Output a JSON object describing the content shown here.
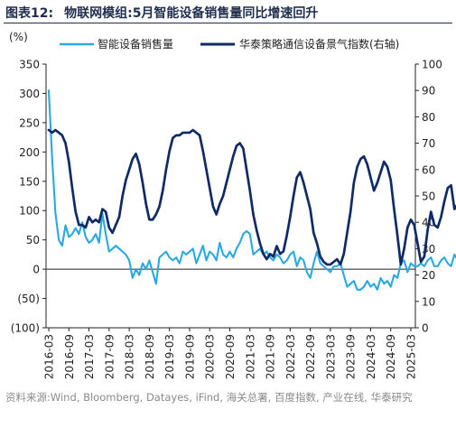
{
  "header": {
    "figure_label": "图表12:",
    "figure_title": "物联网模组:5月智能设备销售量同比增速回升"
  },
  "source_note": "资料来源:Wind, Bloomberg, Datayes, iFind, 海关总署, 百度指数, 产业在线, 华泰研究",
  "colors": {
    "title": "#1f2e4d",
    "series_sales": "#29a9e1",
    "series_index": "#0f2a66",
    "axis": "#222222",
    "source": "#8a8a8a"
  },
  "chart_data": {
    "type": "line",
    "left_axis_unit": "(%)",
    "ylim_left": [
      -100,
      350
    ],
    "ylim_right": [
      0,
      100
    ],
    "y_ticks_left": [
      -100,
      -50,
      0,
      50,
      100,
      150,
      200,
      250,
      300,
      350
    ],
    "y_tick_labels_left": [
      "(100)",
      "(50)",
      "0",
      "50",
      "100",
      "150",
      "200",
      "250",
      "300",
      "350"
    ],
    "y_ticks_right": [
      0,
      10,
      20,
      30,
      40,
      50,
      60,
      70,
      80,
      90,
      100
    ],
    "x_tick_labels": [
      "2016-03",
      "2016-09",
      "2017-03",
      "2017-09",
      "2018-03",
      "2018-09",
      "2019-03",
      "2019-09",
      "2020-03",
      "2020-09",
      "2021-03",
      "2021-09",
      "2022-03",
      "2022-09",
      "2023-03",
      "2023-09",
      "2024-03",
      "2024-09",
      "2025-03"
    ],
    "grid": false,
    "legend_position": "top",
    "series": [
      {
        "name": "智能设备销售量",
        "axis": "left",
        "start": "2016-03",
        "values": [
          305,
          190,
          95,
          50,
          40,
          75,
          55,
          60,
          70,
          60,
          80,
          55,
          45,
          50,
          60,
          45,
          95,
          60,
          30,
          35,
          40,
          35,
          30,
          25,
          15,
          -15,
          0,
          -10,
          10,
          0,
          15,
          -5,
          -25,
          20,
          25,
          30,
          20,
          15,
          20,
          10,
          30,
          25,
          30,
          35,
          10,
          25,
          40,
          15,
          30,
          25,
          15,
          45,
          25,
          20,
          30,
          20,
          35,
          45,
          60,
          65,
          60,
          25,
          30,
          35,
          25,
          30,
          20,
          15,
          25,
          20,
          10,
          15,
          25,
          30,
          5,
          20,
          15,
          -5,
          -15,
          10,
          30,
          10,
          5,
          0,
          -5,
          5,
          5,
          10,
          -10,
          -30,
          -25,
          -20,
          -35,
          -35,
          -30,
          -20,
          -30,
          -25,
          -35,
          -15,
          -25,
          -20,
          -30,
          -10,
          -15,
          10,
          15,
          -5,
          10,
          5,
          5,
          10,
          5,
          15,
          20,
          5,
          5,
          15,
          20,
          10,
          5,
          25,
          15,
          25,
          30,
          40,
          25,
          20,
          25,
          30,
          20,
          15,
          15,
          20,
          15
        ]
      },
      {
        "name": "华泰策略通信设备景气指数(右轴)",
        "axis": "right",
        "start": "2016-03",
        "values": [
          75,
          74,
          75,
          74,
          73,
          70,
          63,
          53,
          44,
          39,
          39,
          38,
          42,
          40,
          41,
          40,
          45,
          44,
          38,
          36,
          39,
          42,
          50,
          56,
          60,
          64,
          66,
          62,
          55,
          47,
          41,
          41,
          43,
          46,
          52,
          60,
          67,
          72,
          73,
          73,
          74,
          74,
          74,
          75,
          74,
          73,
          67,
          60,
          53,
          46,
          43,
          47,
          50,
          55,
          60,
          65,
          69,
          70,
          68,
          60,
          52,
          43,
          37,
          32,
          28,
          26,
          28,
          27,
          31,
          28,
          29,
          35,
          42,
          50,
          57,
          59,
          55,
          50,
          45,
          36,
          32,
          27,
          25,
          24,
          24,
          25,
          26,
          24,
          28,
          36,
          44,
          55,
          61,
          64,
          65,
          62,
          57,
          52,
          55,
          59,
          63,
          61,
          56,
          45,
          35,
          24,
          30,
          38,
          41,
          39,
          32,
          25,
          27,
          37,
          44,
          39,
          38,
          42,
          48,
          53,
          54,
          45,
          47,
          40,
          39,
          39,
          38,
          41,
          48,
          52,
          53,
          62,
          63,
          64,
          63
        ]
      }
    ]
  }
}
